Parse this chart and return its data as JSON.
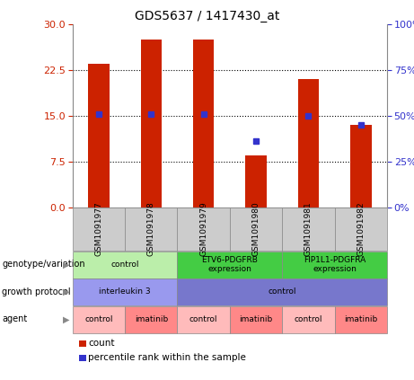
{
  "title": "GDS5637 / 1417430_at",
  "samples": [
    "GSM1091977",
    "GSM1091978",
    "GSM1091979",
    "GSM1091980",
    "GSM1091981",
    "GSM1091982"
  ],
  "counts": [
    23.5,
    27.5,
    27.5,
    8.5,
    21.0,
    13.5
  ],
  "percentiles": [
    51,
    51,
    51,
    36,
    50,
    45
  ],
  "ylim_left": [
    0,
    30
  ],
  "ylim_right": [
    0,
    100
  ],
  "yticks_left": [
    0,
    7.5,
    15,
    22.5,
    30
  ],
  "yticks_right": [
    0,
    25,
    50,
    75,
    100
  ],
  "bar_color": "#cc2200",
  "dot_color": "#3333cc",
  "bar_width": 0.4,
  "annotation_rows": [
    {
      "label": "genotype/variation",
      "cells": [
        {
          "text": "control",
          "span": 2,
          "color": "#bbeeaa"
        },
        {
          "text": "ETV6-PDGFRB\nexpression",
          "span": 2,
          "color": "#44cc44"
        },
        {
          "text": "FIP1L1-PDGFRA\nexpression",
          "span": 2,
          "color": "#44cc44"
        }
      ]
    },
    {
      "label": "growth protocol",
      "cells": [
        {
          "text": "interleukin 3",
          "span": 2,
          "color": "#9999ee"
        },
        {
          "text": "control",
          "span": 4,
          "color": "#7777cc"
        }
      ]
    },
    {
      "label": "agent",
      "cells": [
        {
          "text": "control",
          "span": 1,
          "color": "#ffbbbb"
        },
        {
          "text": "imatinib",
          "span": 1,
          "color": "#ff8888"
        },
        {
          "text": "control",
          "span": 1,
          "color": "#ffbbbb"
        },
        {
          "text": "imatinib",
          "span": 1,
          "color": "#ff8888"
        },
        {
          "text": "control",
          "span": 1,
          "color": "#ffbbbb"
        },
        {
          "text": "imatinib",
          "span": 1,
          "color": "#ff8888"
        }
      ]
    }
  ],
  "legend_items": [
    {
      "color": "#cc2200",
      "label": "count"
    },
    {
      "color": "#3333cc",
      "label": "percentile rank within the sample"
    }
  ]
}
